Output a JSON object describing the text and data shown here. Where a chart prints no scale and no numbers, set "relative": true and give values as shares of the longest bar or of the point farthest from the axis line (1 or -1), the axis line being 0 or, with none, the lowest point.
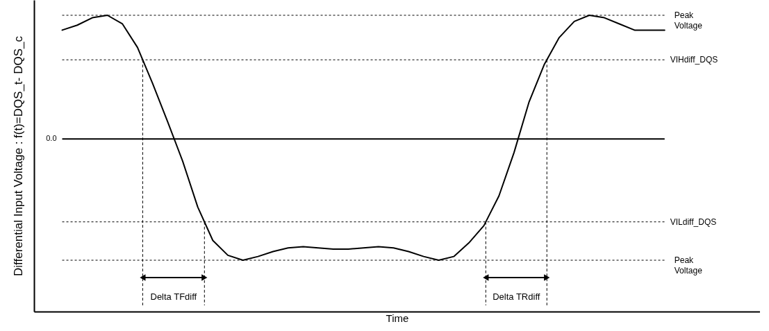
{
  "chart_data": {
    "type": "line",
    "relative": true,
    "xlabel": "Time",
    "ylabel": "Differential Input Voltage : f(t)=DQS_t- DQS_c",
    "categories": [
      null,
      null,
      null,
      null,
      null,
      null,
      null,
      null,
      null,
      null,
      null,
      null,
      null,
      null,
      null,
      null,
      null,
      null,
      null,
      null,
      null,
      null,
      null,
      null,
      null,
      null,
      null,
      null,
      null,
      null,
      null,
      null,
      null,
      null,
      null,
      null,
      null,
      null,
      null,
      null,
      null
    ],
    "tick_labels": false,
    "marker": "none",
    "series": [
      {
        "color": "#000000",
        "values": [
          0.88,
          0.92,
          0.98,
          1,
          0.93,
          0.74,
          0.45,
          0.14,
          -0.18,
          -0.55,
          -0.82,
          -0.94,
          -0.98,
          -0.95,
          -0.91,
          -0.88,
          -0.87,
          -0.88,
          -0.89,
          -0.89,
          -0.88,
          -0.87,
          -0.88,
          -0.91,
          -0.95,
          -0.98,
          -0.95,
          -0.84,
          -0.7,
          -0.46,
          -0.11,
          0.3,
          0.6,
          0.82,
          0.95,
          1,
          0.98,
          0.93,
          0.88,
          0.88,
          0.88
        ]
      }
    ],
    "ref_lines": [
      {
        "axis": "y",
        "value": 0.64,
        "label": "VIHdiff_DQS",
        "line_style": "dotted"
      },
      {
        "axis": "y",
        "value": 0,
        "label": "0.0",
        "line_style": "solid"
      },
      {
        "axis": "y",
        "value": -0.67,
        "label": "VILdiff_DQS",
        "line_style": "dotted"
      }
    ],
    "annotations": [
      "Peak Voltage",
      "Peak Voltage",
      "Delta TFdiff",
      "Delta TRdiff"
    ]
  }
}
